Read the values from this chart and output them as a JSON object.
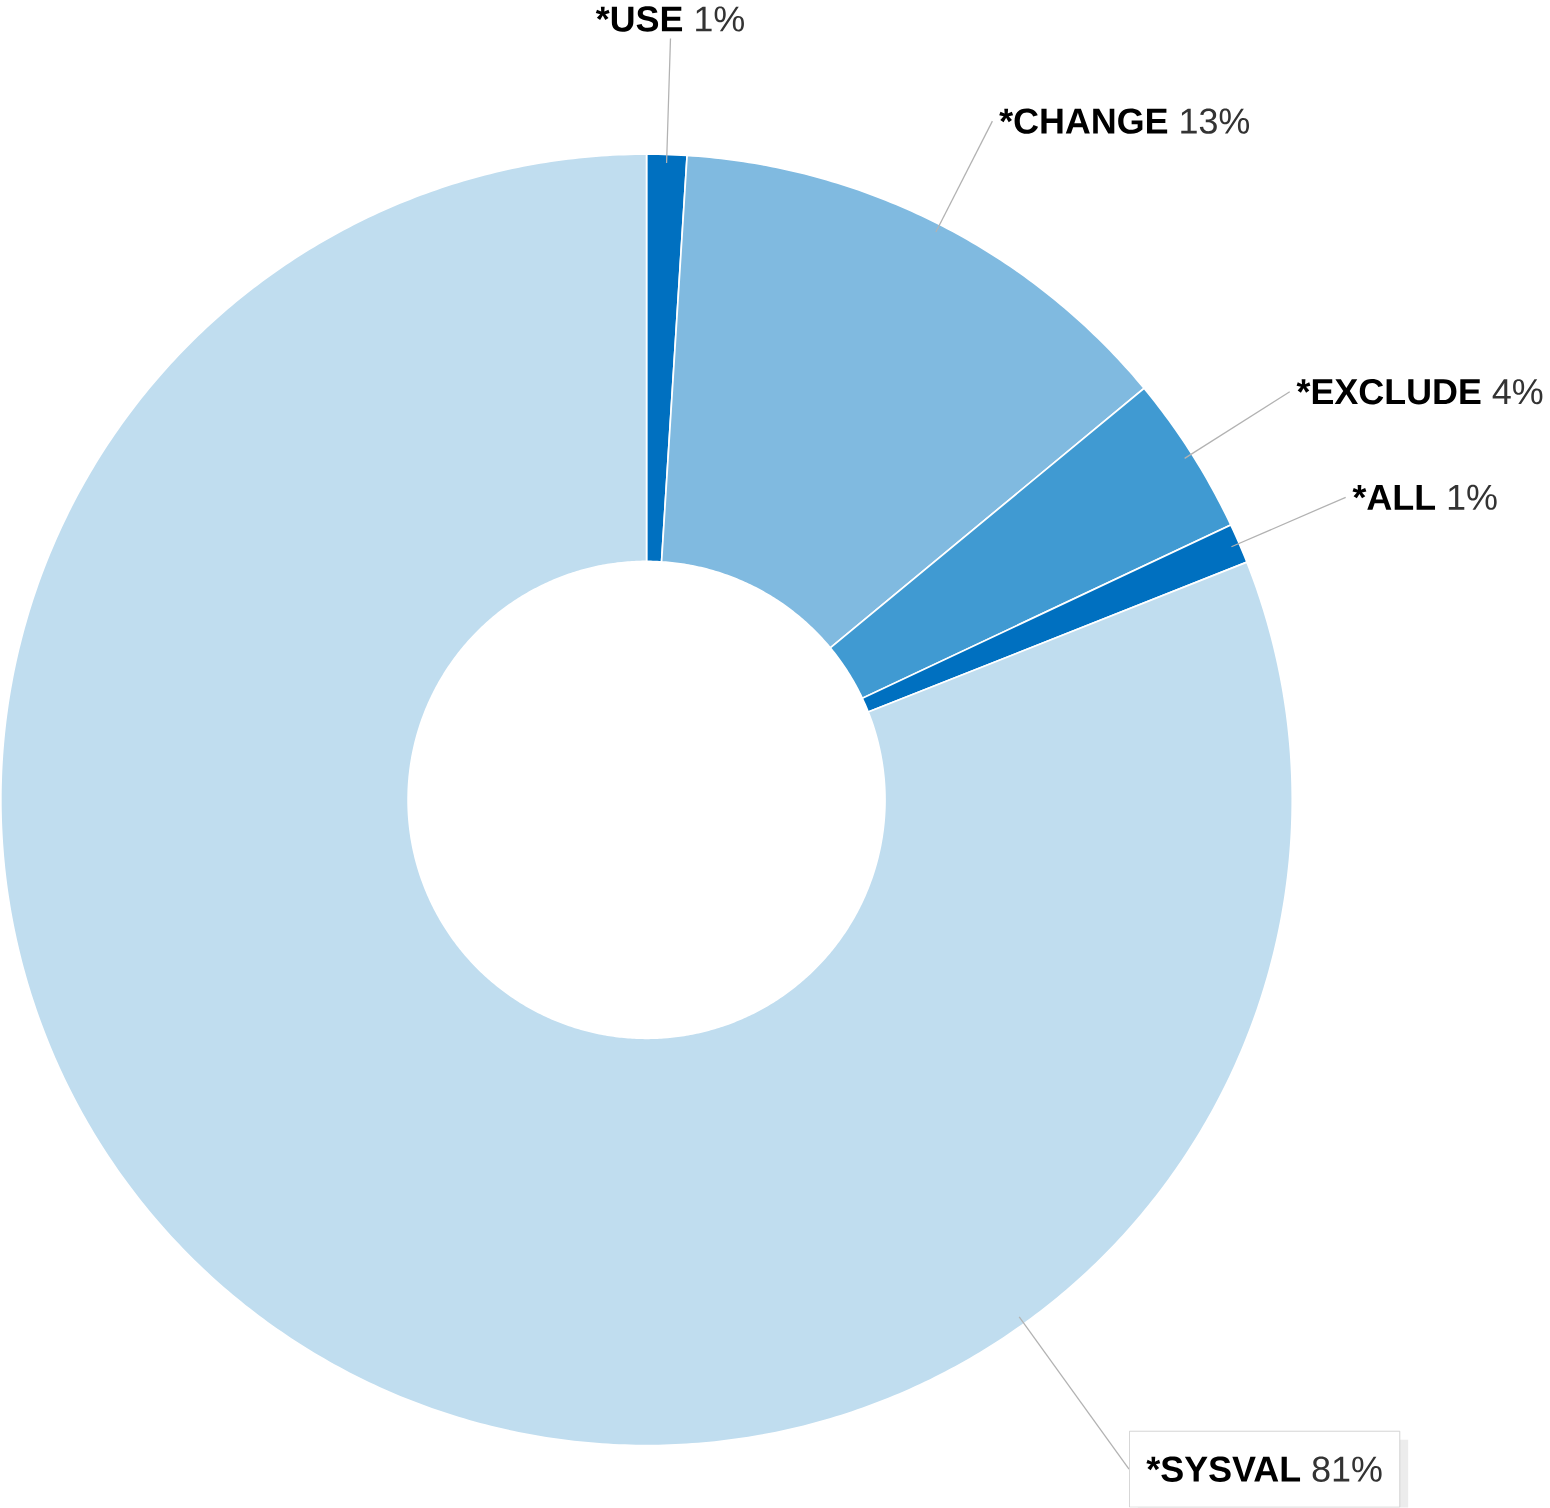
{
  "chart_data": {
    "type": "donut",
    "categories": [
      "*USE",
      "*CHANGE",
      "*EXCLUDE",
      "*ALL",
      "*SYSVAL"
    ],
    "values": [
      1,
      13,
      4,
      1,
      81
    ],
    "value_labels": [
      "1%",
      "13%",
      "4%",
      "1%",
      "81%"
    ],
    "colors": [
      "#0070c0",
      "#80bae0",
      "#409ad2",
      "#0070c0",
      "#c0ddef"
    ]
  }
}
